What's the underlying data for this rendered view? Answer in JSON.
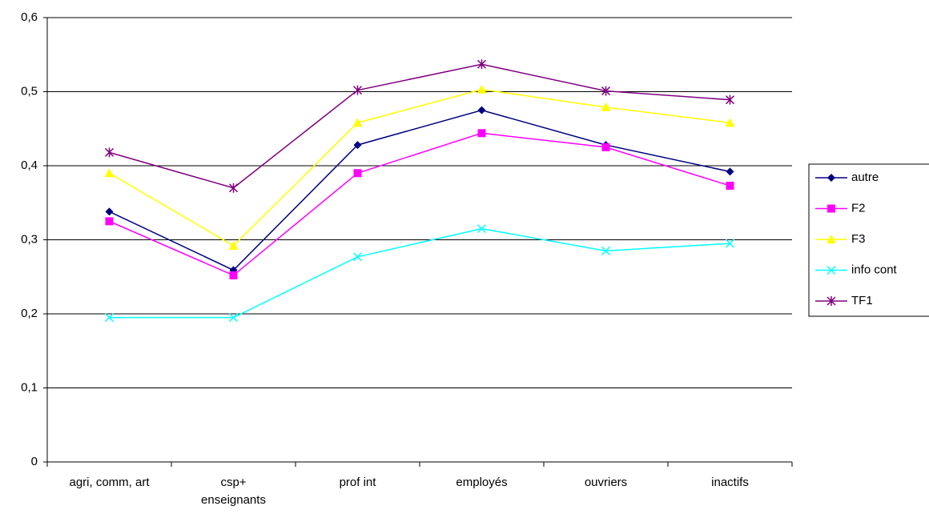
{
  "chart_data": {
    "type": "line",
    "categories": [
      "agri, comm, art",
      "csp+\nenseignants",
      "prof int",
      "employés",
      "ouvriers",
      "inactifs"
    ],
    "series": [
      {
        "name": "autre",
        "color": "#000080",
        "marker": "diamond",
        "values": [
          0.338,
          0.259,
          0.428,
          0.475,
          0.428,
          0.392
        ]
      },
      {
        "name": "F2",
        "color": "#ff00ff",
        "marker": "square",
        "values": [
          0.325,
          0.252,
          0.39,
          0.444,
          0.425,
          0.373
        ]
      },
      {
        "name": "F3",
        "color": "#ffff00",
        "marker": "triangle",
        "values": [
          0.39,
          0.292,
          0.458,
          0.503,
          0.479,
          0.458
        ]
      },
      {
        "name": "info cont",
        "color": "#00ffff",
        "marker": "x",
        "values": [
          0.195,
          0.195,
          0.277,
          0.315,
          0.285,
          0.295
        ]
      },
      {
        "name": "TF1",
        "color": "#800080",
        "marker": "star",
        "values": [
          0.418,
          0.37,
          0.502,
          0.537,
          0.501,
          0.489
        ]
      }
    ],
    "ylim": [
      0,
      0.6
    ],
    "yticks": [
      0,
      {
        "value": 0.1,
        "label": "0,1"
      },
      {
        "value": 0.2,
        "label": "0,2"
      },
      {
        "value": 0.3,
        "label": "0,3"
      },
      {
        "value": 0.4,
        "label": "0,4"
      },
      {
        "value": 0.5,
        "label": "0,5"
      },
      {
        "value": 0.6,
        "label": "0,6"
      }
    ],
    "grid": true,
    "legend": "right"
  }
}
